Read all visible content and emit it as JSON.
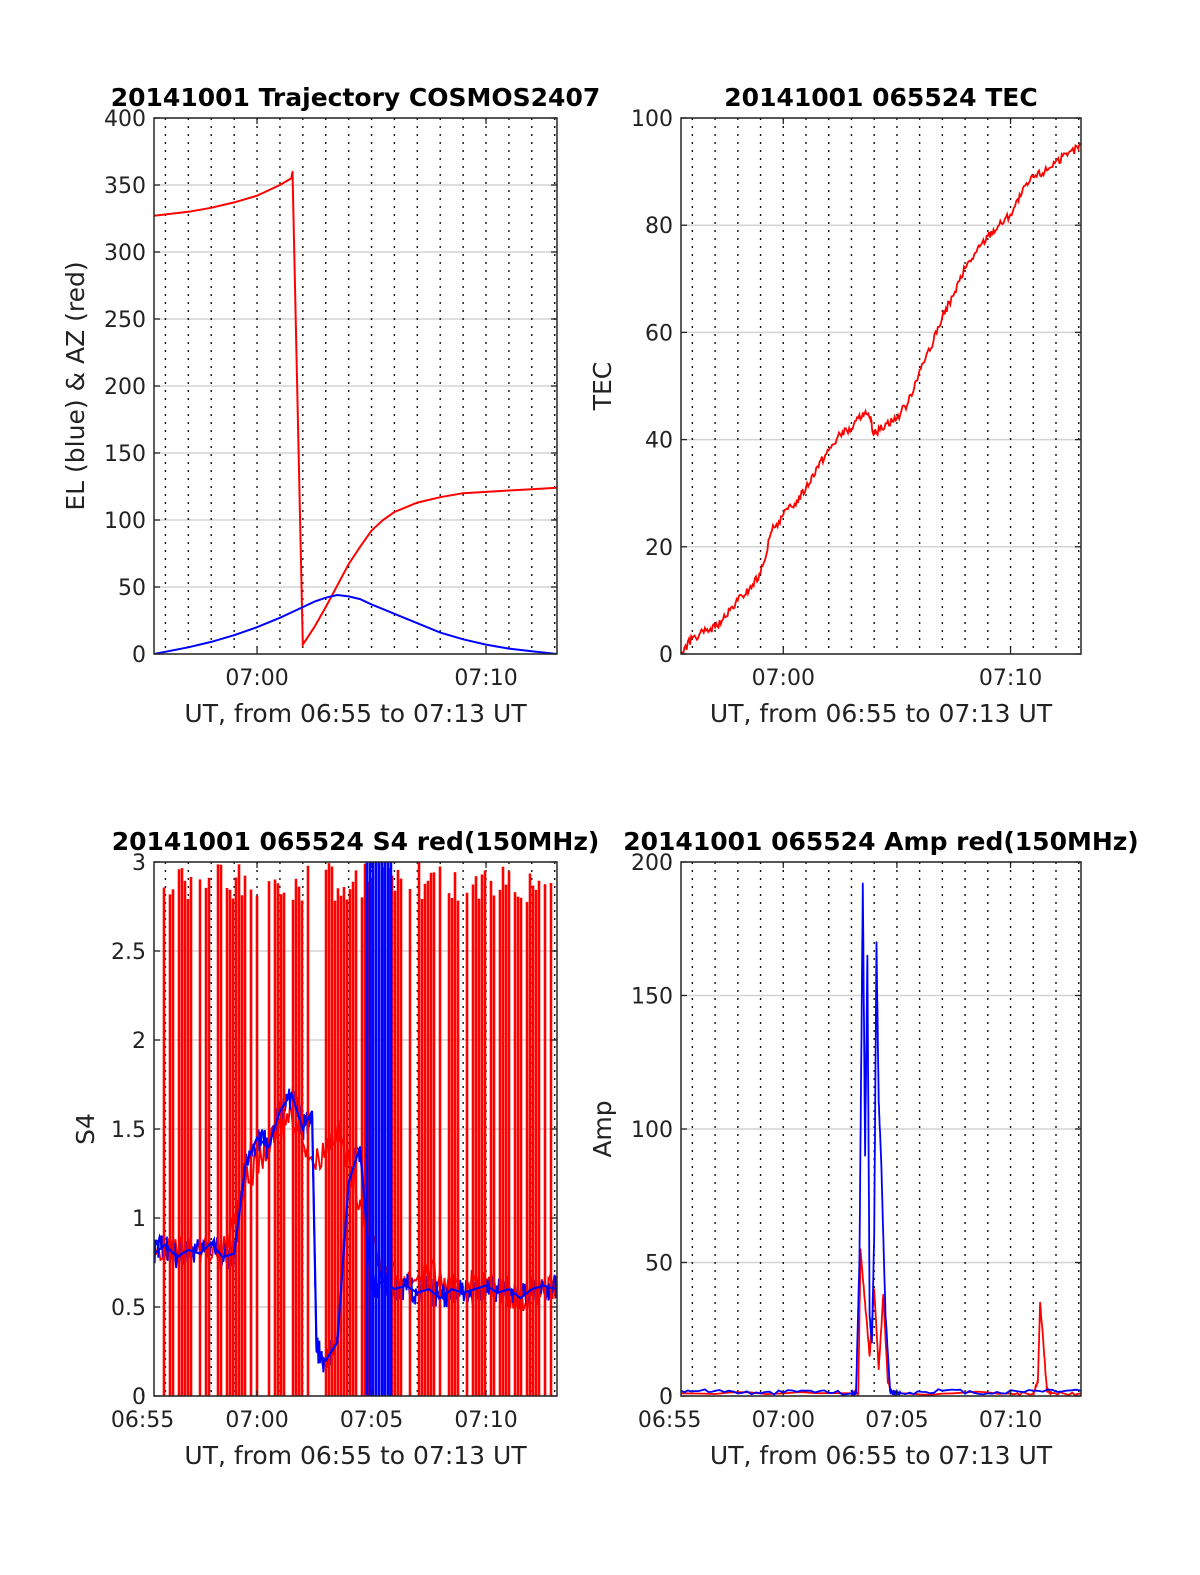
{
  "chart_data": [
    {
      "type": "line",
      "title": "20141001 Trajectory COSMOS2407",
      "xlabel": "UT, from 06:55 to 07:13 UT",
      "ylabel": "EL (blue) & AZ (red)",
      "x_unit": "minutes after 06:55 UT",
      "xlim": [
        0.5,
        18.1
      ],
      "ylim": [
        0,
        400
      ],
      "yticks": [
        0,
        50,
        100,
        150,
        200,
        250,
        300,
        350,
        400
      ],
      "xtick_labels": [
        {
          "x": 5,
          "label": "07:00"
        },
        {
          "x": 15,
          "label": "07:10"
        }
      ],
      "minor_xgrid_every": 1,
      "grid": true,
      "series": [
        {
          "color": "#ff0000",
          "x": [
            0.5,
            2,
            3,
            4,
            5,
            5.5,
            6,
            6.5,
            6.55,
            7,
            7.5,
            8,
            8.5,
            9,
            9.5,
            10,
            10.5,
            11,
            12,
            13,
            14,
            15,
            16,
            17,
            18.1
          ],
          "y": [
            327,
            330,
            333,
            337,
            342,
            346,
            350,
            355,
            360,
            7,
            20,
            35,
            51,
            67,
            80,
            92,
            100,
            106,
            113,
            117,
            120,
            121,
            122,
            123,
            124
          ]
        },
        {
          "color": "#0000ff",
          "x": [
            0.5,
            2,
            3,
            4,
            5,
            6,
            7,
            7.5,
            8,
            8.5,
            9,
            9.5,
            10,
            11,
            12,
            13,
            14,
            15,
            16,
            17,
            18.1
          ],
          "y": [
            0,
            5,
            9,
            14,
            20,
            27,
            35,
            39,
            42,
            44,
            43,
            41,
            37,
            30,
            23,
            16,
            11,
            7,
            4,
            2,
            0
          ]
        }
      ]
    },
    {
      "type": "line",
      "title": "20141001 065524 TEC",
      "xlabel": "UT, from 06:55 to 07:13 UT",
      "ylabel": "TEC",
      "x_unit": "minutes after 06:55 UT",
      "xlim": [
        0.5,
        18.1
      ],
      "ylim": [
        0,
        100
      ],
      "yticks": [
        0,
        20,
        40,
        60,
        80,
        100
      ],
      "xtick_labels": [
        {
          "x": 5,
          "label": "07:00"
        },
        {
          "x": 15,
          "label": "07:10"
        }
      ],
      "minor_xgrid_every": 1,
      "grid": true,
      "series": [
        {
          "color": "#ff0000",
          "x": [
            0.5,
            1,
            1.5,
            2,
            2.5,
            3,
            3.5,
            4,
            4.5,
            5,
            5.5,
            6,
            6.5,
            7,
            7.5,
            8,
            8.5,
            8.8,
            9,
            9.5,
            10,
            10.5,
            11,
            11.5,
            12,
            12.5,
            13,
            13.5,
            14,
            14.5,
            15,
            15.5,
            16,
            16.5,
            17,
            17.5,
            18.1
          ],
          "y": [
            0,
            3,
            4,
            5,
            7,
            10,
            12,
            15,
            23,
            26,
            28,
            31,
            35,
            38,
            41,
            42,
            45,
            44,
            41,
            43,
            44,
            47,
            53,
            57,
            63,
            67,
            72,
            75,
            78,
            80,
            82,
            86,
            89,
            90,
            92,
            93,
            95
          ]
        }
      ]
    },
    {
      "type": "line",
      "title": "20141001 065524 S4 red(150MHz)",
      "xlabel": "UT, from 06:55 to 07:13 UT",
      "ylabel": "S4",
      "x_unit": "minutes after 06:55 UT",
      "xlim": [
        0.5,
        18.1
      ],
      "ylim": [
        0,
        3
      ],
      "yticks": [
        0,
        0.5,
        1,
        1.5,
        2,
        2.5,
        3
      ],
      "xtick_labels": [
        {
          "x": 0,
          "label": "06:55"
        },
        {
          "x": 5,
          "label": "07:00"
        },
        {
          "x": 10,
          "label": "07:05"
        },
        {
          "x": 15,
          "label": "07:10"
        }
      ],
      "minor_xgrid_every": 1,
      "grid": true,
      "series": [
        {
          "color": "#ff0000",
          "x": [
            0.5,
            2,
            3.5,
            4.5,
            5.5,
            6.5,
            7.5,
            8.5,
            9.5,
            10.5,
            11.5,
            12.5,
            13.5,
            14.5,
            15.5,
            16.5,
            17.5,
            18.1
          ],
          "y": [
            0.8,
            0.85,
            0.8,
            1.2,
            1.4,
            1.6,
            1.3,
            1.5,
            1.1,
            0.7,
            0.65,
            0.7,
            0.6,
            0.65,
            0.6,
            0.55,
            0.6,
            0.6
          ]
        },
        {
          "color": "#0000ff",
          "x": [
            0.5,
            1,
            1.5,
            2,
            2.5,
            3,
            3.5,
            4,
            4.5,
            5,
            5.5,
            6,
            6.5,
            7,
            7.4,
            7.6,
            8,
            8.5,
            9,
            9.5,
            10,
            10.5,
            11,
            11.5,
            12,
            12.5,
            13,
            13.5,
            14,
            14.5,
            15,
            15.5,
            16,
            16.5,
            17,
            17.5,
            18.1
          ],
          "y": [
            0.8,
            0.85,
            0.78,
            0.82,
            0.8,
            0.86,
            0.78,
            0.8,
            1.3,
            1.45,
            1.4,
            1.6,
            1.7,
            1.5,
            1.6,
            0.25,
            0.2,
            0.3,
            1.2,
            1.4,
            0.6,
            0.65,
            0.6,
            0.62,
            0.58,
            0.6,
            0.55,
            0.6,
            0.58,
            0.6,
            0.62,
            0.58,
            0.6,
            0.55,
            0.6,
            0.62,
            0.6
          ]
        }
      ]
    },
    {
      "type": "line",
      "title": "20141001 065524 Amp red(150MHz)",
      "xlabel": "UT, from 06:55 to 07:13 UT",
      "ylabel": "Amp",
      "x_unit": "minutes after 06:55 UT",
      "xlim": [
        0.5,
        18.1
      ],
      "ylim": [
        0,
        200
      ],
      "yticks": [
        0,
        50,
        100,
        150,
        200
      ],
      "xtick_labels": [
        {
          "x": 0,
          "label": "06:55"
        },
        {
          "x": 5,
          "label": "07:00"
        },
        {
          "x": 10,
          "label": "07:05"
        },
        {
          "x": 15,
          "label": "07:10"
        }
      ],
      "minor_xgrid_every": 1,
      "grid": true,
      "series": [
        {
          "color": "#ff0000",
          "x": [
            0.5,
            8,
            8.3,
            8.4,
            8.6,
            8.8,
            9,
            9.2,
            9.4,
            9.6,
            9.8,
            10,
            15,
            16,
            16.2,
            16.3,
            16.4,
            16.6,
            16.8,
            18.1
          ],
          "y": [
            1,
            1,
            1,
            55,
            35,
            15,
            40,
            10,
            38,
            5,
            1,
            1,
            1,
            1,
            5,
            35,
            25,
            2,
            1,
            1
          ]
        },
        {
          "color": "#0000ff",
          "x": [
            0.5,
            2,
            4,
            6,
            8,
            8.2,
            8.35,
            8.5,
            8.6,
            8.7,
            8.8,
            8.9,
            9.0,
            9.1,
            9.2,
            9.3,
            9.5,
            9.7,
            9.9,
            10.2,
            12,
            14,
            16,
            18.1
          ],
          "y": [
            2,
            2,
            1,
            2,
            1,
            1,
            50,
            192,
            90,
            165,
            30,
            20,
            60,
            170,
            110,
            90,
            30,
            2,
            1,
            1,
            2,
            1,
            2,
            2
          ]
        }
      ]
    }
  ],
  "style": {
    "grid_color": "#d3d3d3",
    "minor_grid_color": "#111111",
    "axis_color": "#262626"
  }
}
